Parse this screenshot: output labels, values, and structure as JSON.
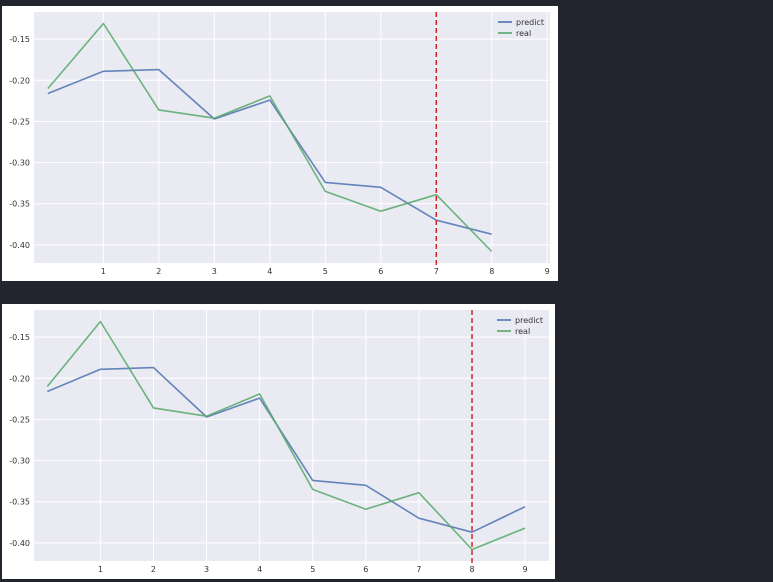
{
  "colors": {
    "figure_bg": "#22252d",
    "panel_bg": "#ffffff",
    "plot_bg": "#eaeaf2",
    "grid": "#ffffff",
    "predict": "#4c72b0",
    "real": "#55a868",
    "vline": "#d62728"
  },
  "chart_data": [
    {
      "type": "line",
      "title": "",
      "xlabel": "",
      "ylabel": "",
      "x": [
        0,
        1,
        2,
        3,
        4,
        5,
        6,
        7,
        8
      ],
      "xticks": [
        1,
        2,
        3,
        4,
        5,
        6,
        7,
        8,
        9
      ],
      "xtick_labels": [
        "1",
        "2",
        "3",
        "4",
        "5",
        "6",
        "7",
        "8",
        "9"
      ],
      "yticks": [
        -0.15,
        -0.2,
        -0.25,
        -0.3,
        -0.35,
        -0.4
      ],
      "ytick_labels": [
        "-0.15",
        "-0.20",
        "-0.25",
        "-0.30",
        "-0.35",
        "-0.40"
      ],
      "xlim": [
        -0.25,
        9.05
      ],
      "ylim": [
        -0.422,
        -0.117
      ],
      "grid": true,
      "legend_position": "top-right",
      "vline_x": 7,
      "series": [
        {
          "name": "predict",
          "color": "#4c72b0",
          "values": [
            -0.216,
            -0.189,
            -0.187,
            -0.247,
            -0.224,
            -0.324,
            -0.33,
            -0.37,
            -0.387
          ]
        },
        {
          "name": "real",
          "color": "#55a868",
          "values": [
            -0.21,
            -0.131,
            -0.236,
            -0.246,
            -0.219,
            -0.335,
            -0.359,
            -0.339,
            -0.408
          ]
        }
      ]
    },
    {
      "type": "line",
      "title": "",
      "xlabel": "",
      "ylabel": "",
      "x": [
        0,
        1,
        2,
        3,
        4,
        5,
        6,
        7,
        8,
        9
      ],
      "xticks": [
        1,
        2,
        3,
        4,
        5,
        6,
        7,
        8,
        9
      ],
      "xtick_labels": [
        "1",
        "2",
        "3",
        "4",
        "5",
        "6",
        "7",
        "8",
        "9"
      ],
      "yticks": [
        -0.15,
        -0.2,
        -0.25,
        -0.3,
        -0.35,
        -0.4
      ],
      "ytick_labels": [
        "-0.15",
        "-0.20",
        "-0.25",
        "-0.30",
        "-0.35",
        "-0.40"
      ],
      "xlim": [
        -0.25,
        9.45
      ],
      "ylim": [
        -0.422,
        -0.117
      ],
      "grid": true,
      "legend_position": "top-right",
      "vline_x": 8,
      "series": [
        {
          "name": "predict",
          "color": "#4c72b0",
          "values": [
            -0.216,
            -0.189,
            -0.187,
            -0.247,
            -0.224,
            -0.324,
            -0.33,
            -0.37,
            -0.387,
            -0.356
          ]
        },
        {
          "name": "real",
          "color": "#55a868",
          "values": [
            -0.21,
            -0.131,
            -0.236,
            -0.246,
            -0.219,
            -0.335,
            -0.359,
            -0.339,
            -0.408,
            -0.382
          ]
        }
      ]
    }
  ]
}
